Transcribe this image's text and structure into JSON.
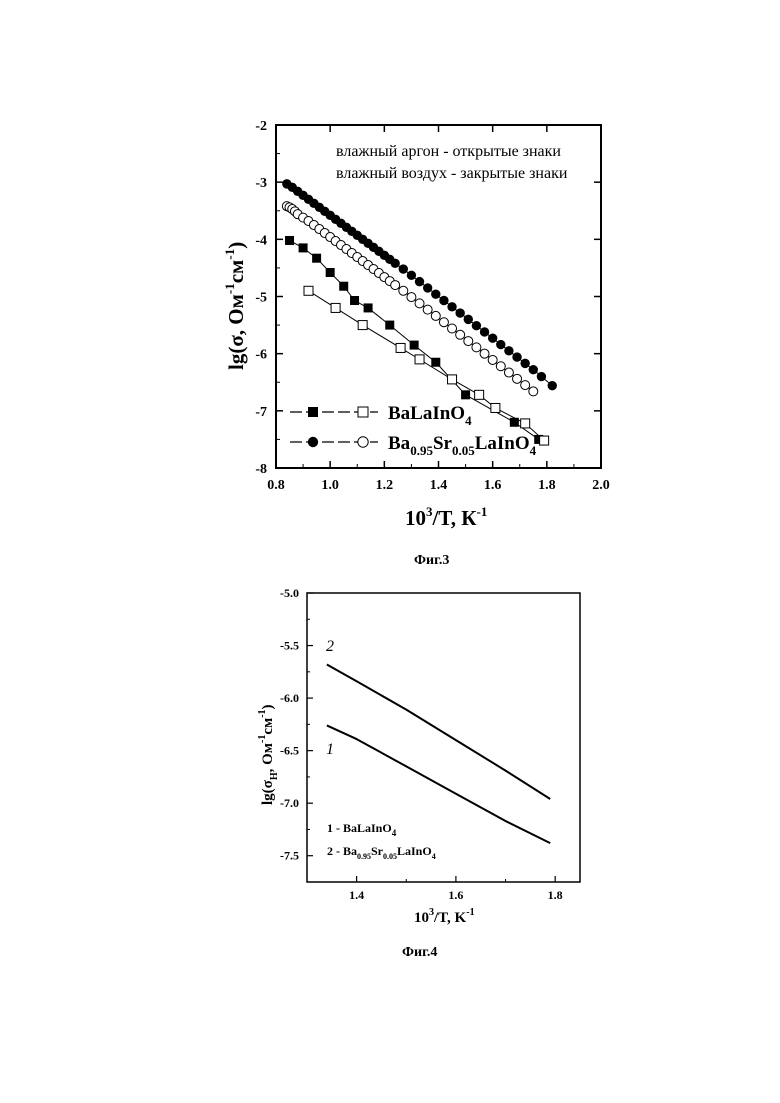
{
  "chart_data": [
    {
      "type": "scatter",
      "caption": "Фиг.3",
      "xlim": [
        0.8,
        2.0
      ],
      "ylim": [
        -8,
        -2
      ],
      "xticks": [
        "0.8",
        "1.0",
        "1.2",
        "1.4",
        "1.6",
        "1.8",
        "2.0"
      ],
      "yticks": [
        "-2",
        "-3",
        "-4",
        "-5",
        "-6",
        "-7",
        "-8"
      ],
      "xlabel": {
        "base": "10",
        "sup": "3",
        "rest": "/T, К",
        "sup2": "-1"
      },
      "ylabel": {
        "pre": "lg(σ, Ом",
        "sup1": "-1",
        "mid": "см",
        "sup2": "-1",
        "post": ")"
      },
      "annotations": [
        "влажный аргон - открытые знаки",
        "влажный воздух - закрытые знаки"
      ],
      "legend": [
        {
          "text": "BaLaInO",
          "sub": "4"
        },
        {
          "text_parts": [
            "Ba",
            "0.95",
            "Sr",
            "0.05",
            "LaInO",
            "4"
          ]
        }
      ],
      "series": [
        {
          "marker": "filled-square",
          "x": [
            0.85,
            0.9,
            0.95,
            1.0,
            1.05,
            1.09,
            1.14,
            1.22,
            1.31,
            1.39,
            1.5,
            1.68,
            1.77
          ],
          "y": [
            -4.02,
            -4.15,
            -4.33,
            -4.58,
            -4.82,
            -5.07,
            -5.2,
            -5.5,
            -5.85,
            -6.15,
            -6.72,
            -7.2,
            -7.5
          ]
        },
        {
          "marker": "open-square",
          "x": [
            0.92,
            1.02,
            1.12,
            1.26,
            1.33,
            1.45,
            1.55,
            1.61,
            1.72,
            1.79
          ],
          "y": [
            -4.9,
            -5.2,
            -5.5,
            -5.9,
            -6.1,
            -6.45,
            -6.72,
            -6.95,
            -7.22,
            -7.52
          ]
        },
        {
          "marker": "filled-circle",
          "x": [
            0.84,
            0.86,
            0.88,
            0.9,
            0.92,
            0.94,
            0.96,
            0.98,
            1.0,
            1.02,
            1.04,
            1.06,
            1.08,
            1.1,
            1.12,
            1.14,
            1.16,
            1.18,
            1.2,
            1.22,
            1.24,
            1.27,
            1.3,
            1.33,
            1.36,
            1.39,
            1.42,
            1.45,
            1.48,
            1.51,
            1.54,
            1.57,
            1.6,
            1.63,
            1.66,
            1.69,
            1.72,
            1.75,
            1.78,
            1.82
          ],
          "y": [
            -3.03,
            -3.09,
            -3.16,
            -3.23,
            -3.3,
            -3.37,
            -3.44,
            -3.51,
            -3.58,
            -3.65,
            -3.72,
            -3.79,
            -3.86,
            -3.93,
            -4.0,
            -4.07,
            -4.14,
            -4.21,
            -4.28,
            -4.35,
            -4.42,
            -4.52,
            -4.63,
            -4.74,
            -4.85,
            -4.96,
            -5.07,
            -5.18,
            -5.29,
            -5.4,
            -5.51,
            -5.62,
            -5.73,
            -5.84,
            -5.95,
            -6.06,
            -6.17,
            -6.28,
            -6.4,
            -6.56
          ]
        },
        {
          "marker": "open-circle",
          "x": [
            0.84,
            0.85,
            0.86,
            0.87,
            0.88,
            0.9,
            0.92,
            0.94,
            0.96,
            0.98,
            1.0,
            1.02,
            1.04,
            1.06,
            1.08,
            1.1,
            1.12,
            1.14,
            1.16,
            1.18,
            1.2,
            1.22,
            1.24,
            1.27,
            1.3,
            1.33,
            1.36,
            1.39,
            1.42,
            1.45,
            1.48,
            1.51,
            1.54,
            1.57,
            1.6,
            1.63,
            1.66,
            1.69,
            1.72,
            1.75
          ],
          "y": [
            -3.42,
            -3.44,
            -3.47,
            -3.51,
            -3.56,
            -3.62,
            -3.68,
            -3.75,
            -3.82,
            -3.89,
            -3.96,
            -4.03,
            -4.1,
            -4.17,
            -4.24,
            -4.31,
            -4.38,
            -4.45,
            -4.52,
            -4.59,
            -4.66,
            -4.73,
            -4.8,
            -4.9,
            -5.01,
            -5.12,
            -5.23,
            -5.34,
            -5.45,
            -5.56,
            -5.67,
            -5.78,
            -5.89,
            -6.0,
            -6.11,
            -6.22,
            -6.33,
            -6.44,
            -6.55,
            -6.66
          ]
        }
      ]
    },
    {
      "type": "line",
      "caption": "Фиг.4",
      "xlim": [
        1.3,
        1.85
      ],
      "ylim": [
        -7.75,
        -5.0
      ],
      "xticks": [
        "1.4",
        "1.6",
        "1.8"
      ],
      "yticks": [
        "-5.0",
        "-5.5",
        "-6.0",
        "-6.5",
        "-7.0",
        "-7.5"
      ],
      "xlabel": {
        "base": "10",
        "sup": "3",
        "rest": "/T, K",
        "sup2": "-1"
      },
      "ylabel": {
        "pre": "lg(σ",
        "sub": "H",
        "mid": ", Ом",
        "sup1": "-1",
        "mid2": "см",
        "sup2": "-1",
        "post": ")"
      },
      "curve_labels": [
        "2",
        "1"
      ],
      "legend": [
        {
          "text": "1 - BaLaInO",
          "sub": "4"
        },
        {
          "text_parts": [
            "2 - Ba",
            "0.95",
            "Sr",
            "0.05",
            "LaInO",
            "4"
          ]
        }
      ],
      "series": [
        {
          "name": "1",
          "x": [
            1.34,
            1.4,
            1.5,
            1.6,
            1.7,
            1.79
          ],
          "y": [
            -6.26,
            -6.39,
            -6.65,
            -6.91,
            -7.17,
            -7.38
          ]
        },
        {
          "name": "2",
          "x": [
            1.34,
            1.4,
            1.5,
            1.6,
            1.7,
            1.79
          ],
          "y": [
            -5.68,
            -5.84,
            -6.11,
            -6.4,
            -6.69,
            -6.96
          ]
        }
      ]
    }
  ]
}
